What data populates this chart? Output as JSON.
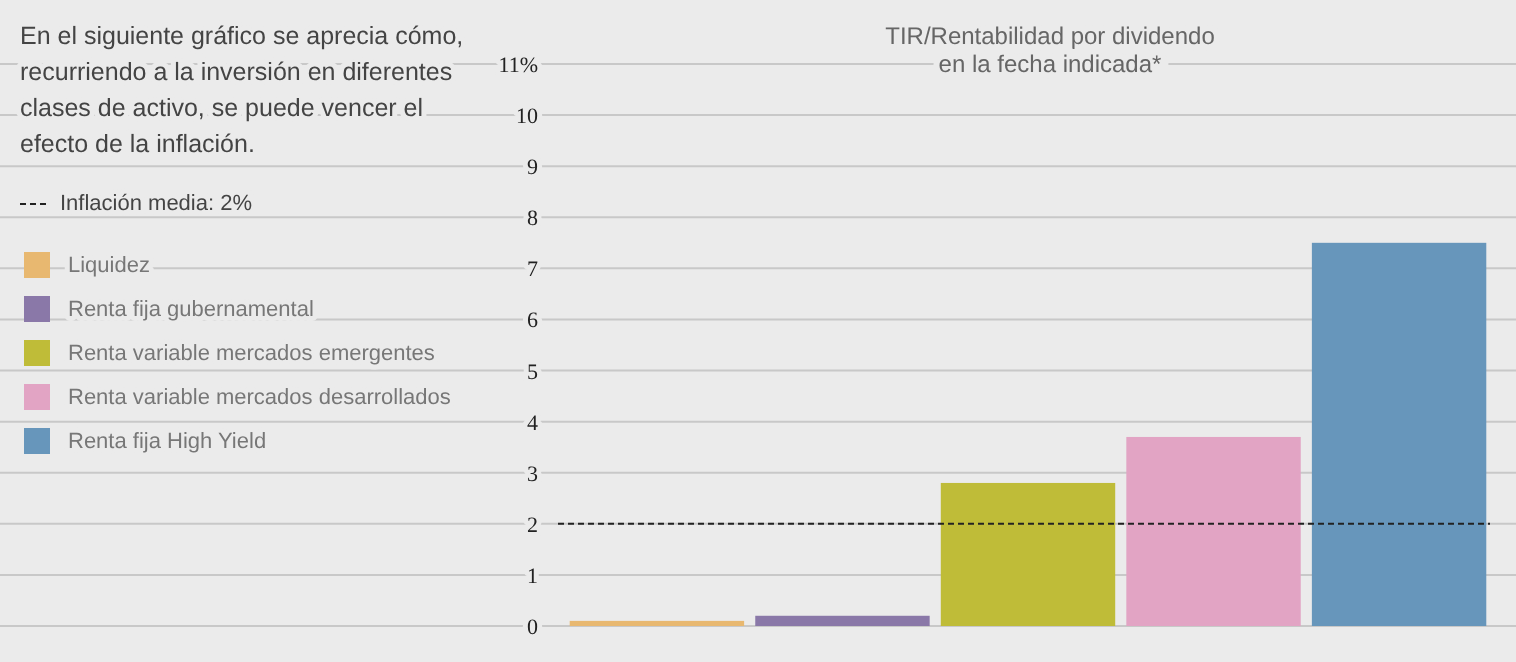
{
  "chart_data": {
    "type": "bar",
    "title": "TIR/Rentabilidad por dividendo\nen la fecha indicada*",
    "annotations": [
      "En el siguiente gráfico se aprecia cómo,\nrecurriendo a la inversión en diferentes\nclases de activo, se puede vencer el\nefecto de la inflación."
    ],
    "categories": [
      null,
      null,
      null,
      null,
      null
    ],
    "series": [
      {
        "name": "Liquidez",
        "color": "#e8b870",
        "values": [
          0.1,
          null,
          null,
          null,
          null
        ]
      },
      {
        "name": "Renta fija gubernamental",
        "color": "#8a78a8",
        "values": [
          null,
          0.2,
          null,
          null,
          null
        ]
      },
      {
        "name": "Renta variable mercados emergentes",
        "color": "#bfbc38",
        "values": [
          null,
          null,
          2.8,
          null,
          null
        ]
      },
      {
        "name": "Renta variable mercados desarrollados",
        "color": "#e2a4c4",
        "values": [
          null,
          null,
          null,
          3.7,
          null
        ]
      },
      {
        "name": "Renta fija High Yield",
        "color": "#6796bb",
        "values": [
          null,
          null,
          null,
          null,
          7.5
        ]
      }
    ],
    "ylim": [
      0,
      11
    ],
    "yticks": [
      0,
      1,
      2,
      3,
      4,
      5,
      6,
      7,
      8,
      9,
      10,
      {
        "value": 11,
        "label": "11%"
      }
    ],
    "ref_lines": [
      {
        "axis": "y",
        "value": 2,
        "label": "Inflación media: 2%",
        "line_style": "dashed",
        "color": "#222222"
      }
    ],
    "stacked": true,
    "grid": "y",
    "legend": "left",
    "tick_labels": "y"
  }
}
